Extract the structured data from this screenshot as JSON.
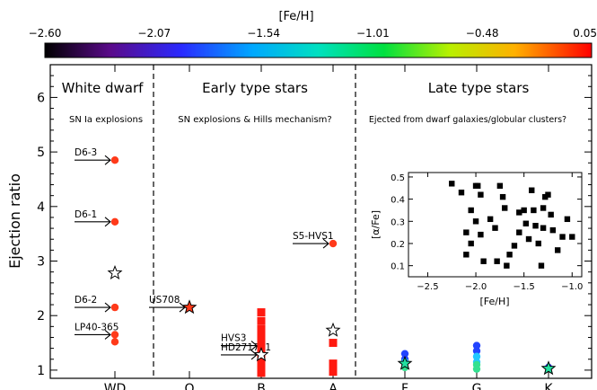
{
  "colorbar": {
    "label": "[Fe/H]",
    "min": -2.6,
    "max": 0.05,
    "tick_labels": [
      "−2.60",
      "−2.07",
      "−1.54",
      "−1.01",
      "−0.48",
      "0.05"
    ],
    "tick_values": [
      -2.6,
      -2.07,
      -1.54,
      -1.01,
      -0.48,
      0.05
    ]
  },
  "sections": [
    {
      "title": "White dwarf",
      "subtitle": "SN Ia explosions"
    },
    {
      "title": "Early type stars",
      "subtitle": "SN explosions & Hills mechanism?"
    },
    {
      "title": "Late type stars",
      "subtitle": "Ejected from dwarf galaxies/globular clusters?"
    }
  ],
  "chart_data": [
    {
      "type": "scatter",
      "ylabel": "Ejection ratio",
      "xlabel": "",
      "categories": [
        "WD",
        "O",
        "B",
        "A",
        "F",
        "G",
        "K"
      ],
      "ylim": [
        0.85,
        6.6
      ],
      "y_ticks": [
        1,
        2,
        3,
        4,
        5,
        6
      ],
      "section_dividers_after": [
        "WD",
        "A"
      ],
      "series": [
        {
          "marker": "circle",
          "color": "#ff3a1a",
          "points": [
            {
              "x": "WD",
              "y": 4.85
            },
            {
              "x": "WD",
              "y": 3.72
            },
            {
              "x": "WD",
              "y": 2.15
            },
            {
              "x": "WD",
              "y": 1.65
            },
            {
              "x": "WD",
              "y": 1.52
            },
            {
              "x": "A",
              "y": 3.32
            }
          ]
        },
        {
          "marker": "square",
          "color": "#ff1a10",
          "points": [
            {
              "x": "B",
              "y": 2.06
            },
            {
              "x": "B",
              "y": 1.9
            },
            {
              "x": "B",
              "y": 1.75
            },
            {
              "x": "B",
              "y": 1.62
            },
            {
              "x": "B",
              "y": 1.5
            },
            {
              "x": "B",
              "y": 1.42
            },
            {
              "x": "B",
              "y": 1.35
            },
            {
              "x": "B",
              "y": 1.28
            },
            {
              "x": "B",
              "y": 1.22
            },
            {
              "x": "B",
              "y": 1.15
            },
            {
              "x": "B",
              "y": 1.08
            },
            {
              "x": "B",
              "y": 1.0
            },
            {
              "x": "B",
              "y": 0.95
            },
            {
              "x": "A",
              "y": 1.5
            },
            {
              "x": "A",
              "y": 1.12
            },
            {
              "x": "A",
              "y": 1.02
            },
            {
              "x": "A",
              "y": 0.97
            }
          ]
        },
        {
          "marker": "circle",
          "color": "#2244ff",
          "points": [
            {
              "x": "F",
              "y": 1.3
            },
            {
              "x": "F",
              "y": 1.2
            },
            {
              "x": "G",
              "y": 1.45
            },
            {
              "x": "G",
              "y": 1.35
            },
            {
              "x": "K",
              "y": 1.05
            }
          ]
        },
        {
          "marker": "circle",
          "color": "#22c8ff",
          "points": [
            {
              "x": "F",
              "y": 1.15
            },
            {
              "x": "G",
              "y": 1.25
            },
            {
              "x": "G",
              "y": 1.15
            }
          ]
        },
        {
          "marker": "circle",
          "color": "#33e090",
          "points": [
            {
              "x": "F",
              "y": 1.05
            },
            {
              "x": "G",
              "y": 1.1
            },
            {
              "x": "G",
              "y": 1.02
            }
          ]
        },
        {
          "marker": "star-open",
          "color": "#000000",
          "points": [
            {
              "x": "WD",
              "y": 2.78
            },
            {
              "x": "B",
              "y": 1.28
            },
            {
              "x": "A",
              "y": 1.73
            }
          ]
        },
        {
          "marker": "star-filled",
          "color": "#ff3a1a",
          "points": [
            {
              "x": "O",
              "y": 2.15
            }
          ]
        },
        {
          "marker": "star-filled",
          "color": "#22e0a0",
          "points": [
            {
              "x": "F",
              "y": 1.12
            },
            {
              "x": "K",
              "y": 1.03
            }
          ]
        }
      ],
      "annotations": [
        {
          "text": "D6-3",
          "target_x": "WD",
          "target_y": 4.85
        },
        {
          "text": "D6-1",
          "target_x": "WD",
          "target_y": 3.72
        },
        {
          "text": "D6-2",
          "target_x": "WD",
          "target_y": 2.15
        },
        {
          "text": "LP40-365",
          "target_x": "WD",
          "target_y": 1.65
        },
        {
          "text": "US708",
          "target_x": "O",
          "target_y": 2.15
        },
        {
          "text": "HVS3",
          "target_x": "B",
          "target_y": 1.45
        },
        {
          "text": "HD271791",
          "target_x": "B",
          "target_y": 1.28
        },
        {
          "text": "S5-HVS1",
          "target_x": "A",
          "target_y": 3.32
        }
      ]
    },
    {
      "type": "scatter",
      "xlabel": "[Fe/H]",
      "ylabel": "[α/Fe]",
      "xlim": [
        -2.7,
        -0.9
      ],
      "ylim": [
        0.05,
        0.52
      ],
      "x_ticks": [
        -2.5,
        -2.0,
        -1.5,
        -1.0
      ],
      "x_tick_labels": [
        "−2.5",
        "−2.0",
        "−1.5",
        "−1.0"
      ],
      "y_ticks": [
        0.1,
        0.2,
        0.3,
        0.4,
        0.5
      ],
      "y_tick_labels": [
        "0.1",
        "0.2",
        "0.3",
        "0.4",
        "0.5"
      ],
      "marker": "square",
      "color": "#000000",
      "x": [
        -2.25,
        -2.15,
        -2.0,
        -1.98,
        -1.95,
        -2.05,
        -2.0,
        -2.1,
        -2.05,
        -1.95,
        -2.1,
        -1.92,
        -1.85,
        -1.8,
        -1.75,
        -1.72,
        -1.7,
        -1.65,
        -1.6,
        -1.55,
        -1.55,
        -1.5,
        -1.48,
        -1.45,
        -1.42,
        -1.4,
        -1.38,
        -1.35,
        -1.32,
        -1.3,
        -1.3,
        -1.28,
        -1.25,
        -1.22,
        -1.2,
        -1.15,
        -1.1,
        -1.05,
        -1.0,
        -1.78,
        -1.68
      ],
      "y": [
        0.47,
        0.43,
        0.46,
        0.46,
        0.42,
        0.35,
        0.3,
        0.25,
        0.2,
        0.24,
        0.15,
        0.12,
        0.31,
        0.27,
        0.46,
        0.41,
        0.36,
        0.15,
        0.19,
        0.34,
        0.25,
        0.35,
        0.29,
        0.22,
        0.44,
        0.35,
        0.28,
        0.2,
        0.1,
        0.36,
        0.27,
        0.41,
        0.42,
        0.33,
        0.26,
        0.17,
        0.23,
        0.31,
        0.23,
        0.12,
        0.1
      ]
    }
  ]
}
